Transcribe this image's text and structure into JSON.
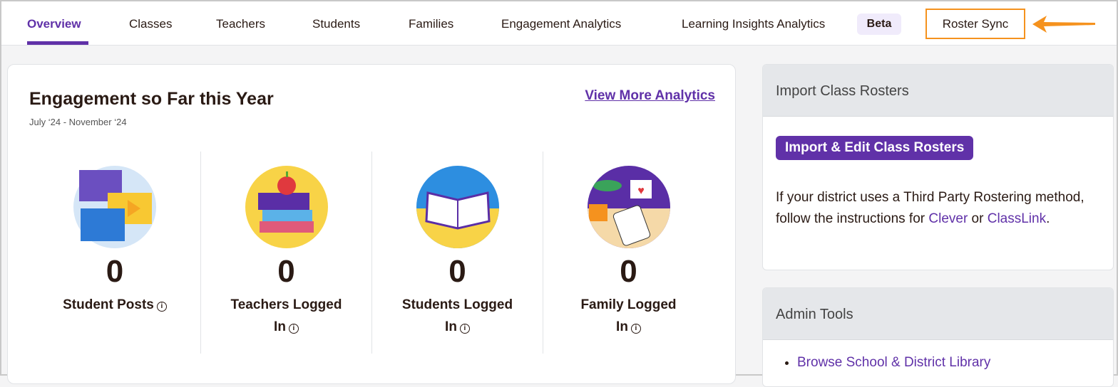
{
  "nav": {
    "tabs": [
      "Overview",
      "Classes",
      "Teachers",
      "Students",
      "Families",
      "Engagement Analytics",
      "Learning Insights Analytics"
    ],
    "beta": "Beta",
    "roster_sync": "Roster Sync",
    "accent": "#6031a8",
    "highlight": "#f5921e"
  },
  "engagement": {
    "title": "Engagement so Far this Year",
    "date_range": "July ‘24 - November ‘24",
    "more_link": "View More Analytics",
    "stats": [
      {
        "value": "0",
        "label1": "Student Posts",
        "label2": ""
      },
      {
        "value": "0",
        "label1": "Teachers Logged",
        "label2": "In"
      },
      {
        "value": "0",
        "label1": "Students Logged",
        "label2": "In"
      },
      {
        "value": "0",
        "label1": "Family Logged",
        "label2": "In"
      }
    ],
    "info": "i"
  },
  "import": {
    "title": "Import Class Rosters",
    "button": "Import & Edit Class Rosters",
    "text": "If your district uses a Third Party Rostering method, follow the instructions for ",
    "clever": "Clever",
    "or": " or ",
    "classlink": "ClassLink",
    "end": "."
  },
  "admin": {
    "title": "Admin Tools",
    "items": [
      "Browse School & District Library"
    ]
  }
}
